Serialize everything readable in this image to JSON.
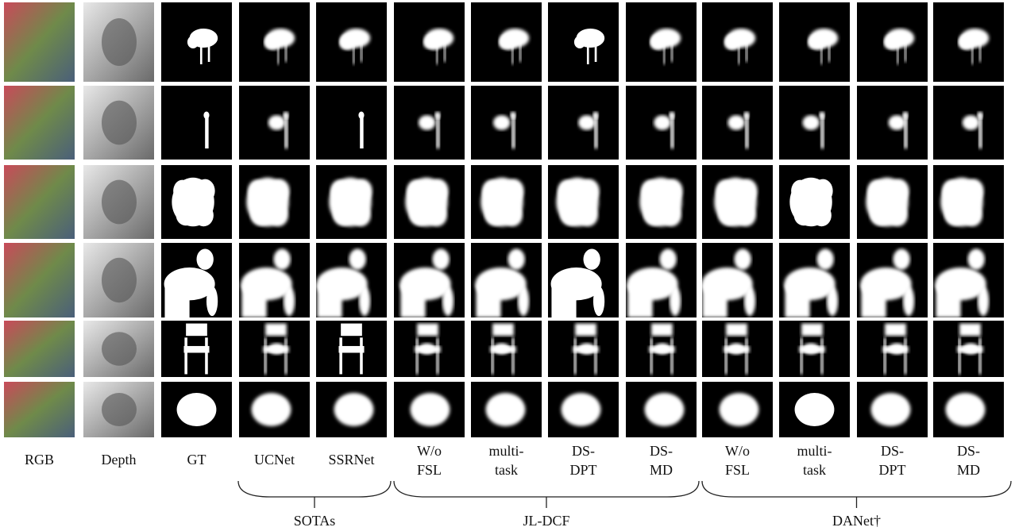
{
  "columns": [
    {
      "label": "RGB"
    },
    {
      "label": "Depth"
    },
    {
      "label": "GT"
    },
    {
      "label": "UCNet"
    },
    {
      "label": "SSRNet"
    },
    {
      "label": [
        "W/o",
        "FSL"
      ]
    },
    {
      "label": [
        "multi-",
        "task"
      ]
    },
    {
      "label": [
        "DS-",
        "DPT"
      ]
    },
    {
      "label": [
        "DS-",
        "MD"
      ]
    },
    {
      "label": [
        "W/o",
        "FSL"
      ]
    },
    {
      "label": [
        "multi-",
        "task"
      ]
    },
    {
      "label": [
        "DS-",
        "DPT"
      ]
    },
    {
      "label": [
        "DS-",
        "MD"
      ]
    }
  ],
  "groups": [
    {
      "label": "SOTAs"
    },
    {
      "label": "JL-DCF"
    },
    {
      "label": "DANet†"
    }
  ]
}
